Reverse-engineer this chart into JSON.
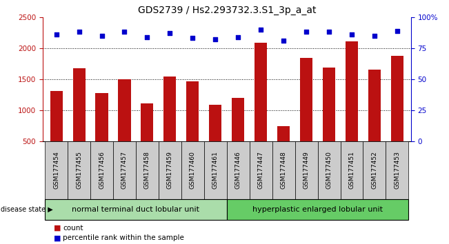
{
  "title": "GDS2739 / Hs2.293732.3.S1_3p_a_at",
  "categories": [
    "GSM177454",
    "GSM177455",
    "GSM177456",
    "GSM177457",
    "GSM177458",
    "GSM177459",
    "GSM177460",
    "GSM177461",
    "GSM177446",
    "GSM177447",
    "GSM177448",
    "GSM177449",
    "GSM177450",
    "GSM177451",
    "GSM177452",
    "GSM177453"
  ],
  "bar_values": [
    1310,
    1680,
    1280,
    1500,
    1110,
    1545,
    1470,
    1090,
    1200,
    2090,
    750,
    1840,
    1690,
    2110,
    1660,
    1880
  ],
  "dot_values": [
    86,
    88,
    85,
    88,
    84,
    87,
    83,
    82,
    84,
    90,
    81,
    88,
    88,
    86,
    85,
    89
  ],
  "bar_color": "#bb1111",
  "dot_color": "#0000cc",
  "ylim_left": [
    500,
    2500
  ],
  "ylim_right": [
    0,
    100
  ],
  "yticks_left": [
    500,
    1000,
    1500,
    2000,
    2500
  ],
  "yticks_right": [
    0,
    25,
    50,
    75,
    100
  ],
  "right_yticklabels": [
    "0",
    "25",
    "50",
    "75",
    "100%"
  ],
  "grid_values": [
    1000,
    1500,
    2000
  ],
  "group1_label": "normal terminal duct lobular unit",
  "group2_label": "hyperplastic enlarged lobular unit",
  "group1_count": 8,
  "group2_count": 8,
  "disease_state_label": "disease state",
  "legend_count_label": "count",
  "legend_percentile_label": "percentile rank within the sample",
  "tick_area_color": "#cccccc",
  "group1_color": "#aaddaa",
  "group2_color": "#66cc66",
  "title_fontsize": 10,
  "tick_fontsize": 7.5,
  "cat_fontsize": 6.5,
  "group_fontsize": 8,
  "legend_fontsize": 7.5
}
